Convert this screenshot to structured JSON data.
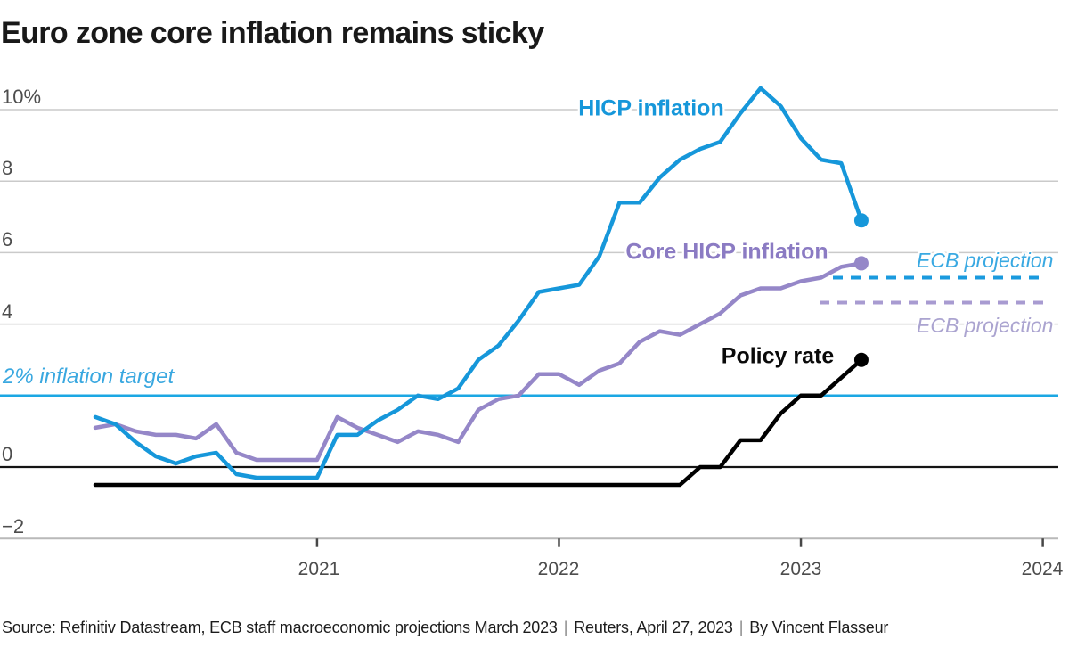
{
  "title": "Euro zone core inflation remains sticky",
  "y_axis": {
    "tick_labels": [
      "10%",
      "8",
      "6",
      "4",
      "0",
      "−2"
    ],
    "tick_values": [
      10,
      8,
      6,
      4,
      0,
      -2
    ]
  },
  "x_axis": {
    "tick_labels": [
      "2021",
      "2022",
      "2023",
      "2024"
    ]
  },
  "annotations": {
    "hicp_label": "HICP inflation",
    "core_label": "Core HICP inflation",
    "policy_label": "Policy rate",
    "target_label": "2% inflation target",
    "ecb_projection_hicp_label": "ECB projection",
    "ecb_projection_core_label": "ECB projection"
  },
  "source": {
    "parts": [
      "Source: Refinitiv Datastream, ECB staff macroeconomic projections March 2023",
      "Reuters, April 27, 2023",
      "By Vincent Flasseur"
    ],
    "separator": "|"
  },
  "colors": {
    "hicp_line": "#1697da",
    "core_line": "#9587c8",
    "policy_line": "#000000",
    "hicp_projection_dash": "#1a9ade",
    "core_projection_dash": "#a89bd1",
    "target_line": "#1ba7e3",
    "target_label": "#3aa8e0",
    "ecb_projection_hicp_label": "#3aa9e2",
    "ecb_projection_core_label": "#aba4d0",
    "gridline": "#cacaca",
    "zero_line": "#141414",
    "axis_line": "#b9b9b9",
    "tick_text": "#4d4d4d",
    "title_text": "#191919"
  },
  "chart_data": {
    "type": "line",
    "title": "Euro zone core inflation remains sticky",
    "x_frequency": "monthly",
    "x_start": "2020-01",
    "x_end": "2023-03",
    "x_tick_years": [
      2021,
      2022,
      2023,
      2024
    ],
    "ylim": [
      -2.8,
      11.2
    ],
    "yticks": [
      10,
      8,
      6,
      4,
      2,
      0,
      -2
    ],
    "grid": "horizontal",
    "units": "percent",
    "series": [
      {
        "name": "HICP inflation",
        "color": "#1697da",
        "values": [
          1.4,
          1.2,
          0.7,
          0.3,
          0.1,
          0.3,
          0.4,
          -0.2,
          -0.3,
          -0.3,
          -0.3,
          -0.3,
          0.9,
          0.9,
          1.3,
          1.6,
          2.0,
          1.9,
          2.2,
          3.0,
          3.4,
          4.1,
          4.9,
          5.0,
          5.1,
          5.9,
          7.4,
          7.4,
          8.1,
          8.6,
          8.9,
          9.1,
          9.9,
          10.6,
          10.1,
          9.2,
          8.6,
          8.5,
          6.9
        ]
      },
      {
        "name": "Core HICP inflation",
        "color": "#9587c8",
        "values": [
          1.1,
          1.2,
          1.0,
          0.9,
          0.9,
          0.8,
          1.2,
          0.4,
          0.2,
          0.2,
          0.2,
          0.2,
          1.4,
          1.1,
          0.9,
          0.7,
          1.0,
          0.9,
          0.7,
          1.6,
          1.9,
          2.0,
          2.6,
          2.6,
          2.3,
          2.7,
          2.9,
          3.5,
          3.8,
          3.7,
          4.0,
          4.3,
          4.8,
          5.0,
          5.0,
          5.2,
          5.3,
          5.6,
          5.7
        ]
      },
      {
        "name": "Policy rate",
        "color": "#000000",
        "values": [
          -0.5,
          -0.5,
          -0.5,
          -0.5,
          -0.5,
          -0.5,
          -0.5,
          -0.5,
          -0.5,
          -0.5,
          -0.5,
          -0.5,
          -0.5,
          -0.5,
          -0.5,
          -0.5,
          -0.5,
          -0.5,
          -0.5,
          -0.5,
          -0.5,
          -0.5,
          -0.5,
          -0.5,
          -0.5,
          -0.5,
          -0.5,
          -0.5,
          -0.5,
          -0.5,
          0.0,
          0.0,
          0.75,
          0.75,
          1.5,
          2.0,
          2.0,
          2.5,
          3.0
        ]
      }
    ],
    "reference_line": {
      "label": "2% inflation target",
      "value": 2
    },
    "projections": [
      {
        "label": "ECB projection",
        "series": "HICP inflation",
        "value": 5.3,
        "style": "dashed",
        "color": "#1a9ade",
        "extends_to": 2024
      },
      {
        "label": "ECB projection",
        "series": "Core HICP inflation",
        "value": 4.6,
        "style": "dashed",
        "color": "#a89bd1",
        "extends_to": 2024
      }
    ]
  }
}
